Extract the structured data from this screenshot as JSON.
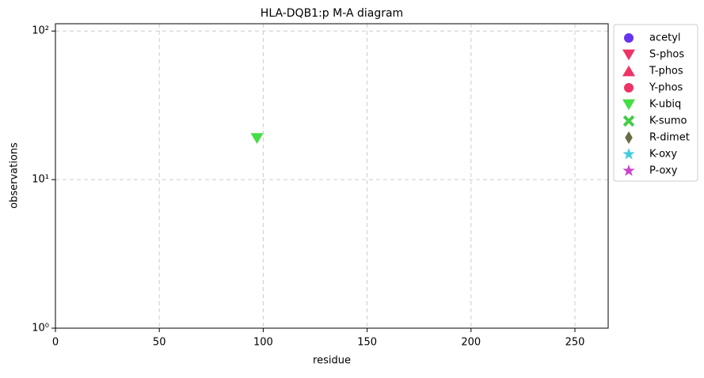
{
  "chart_data": {
    "type": "scatter",
    "title": "HLA-DQB1:p M-A diagram",
    "x_label": "residue",
    "y_label": "observations",
    "xlim": [
      0,
      266
    ],
    "xticks": [
      0,
      50,
      100,
      150,
      200,
      250
    ],
    "ylim": [
      1,
      112
    ],
    "y_scale": "log",
    "yticks": [
      {
        "value": 1,
        "label": "10⁰"
      },
      {
        "value": 10,
        "label": "10¹"
      },
      {
        "value": 100,
        "label": "10²"
      }
    ],
    "grid": true,
    "legend_position": "outside-right",
    "series": [
      {
        "name": "acetyl",
        "color": "#6633ee",
        "marker": "o",
        "x": [],
        "y": []
      },
      {
        "name": "S-phos",
        "color": "#ee3366",
        "marker": "v",
        "x": [],
        "y": []
      },
      {
        "name": "T-phos",
        "color": "#ee3366",
        "marker": "^",
        "x": [],
        "y": []
      },
      {
        "name": "Y-phos",
        "color": "#ee3366",
        "marker": "o",
        "x": [],
        "y": []
      },
      {
        "name": "K-ubiq",
        "color": "#44dd44",
        "marker": "v",
        "x": [
          97
        ],
        "y": [
          19
        ]
      },
      {
        "name": "K-sumo",
        "color": "#44cc44",
        "marker": "X",
        "x": [],
        "y": []
      },
      {
        "name": "R-dimet",
        "color": "#6b6b45",
        "marker": "d",
        "x": [],
        "y": []
      },
      {
        "name": "K-oxy",
        "color": "#44ccdd",
        "marker": "*",
        "x": [],
        "y": []
      },
      {
        "name": "P-oxy",
        "color": "#cc44cc",
        "marker": "*",
        "x": [],
        "y": []
      }
    ]
  }
}
